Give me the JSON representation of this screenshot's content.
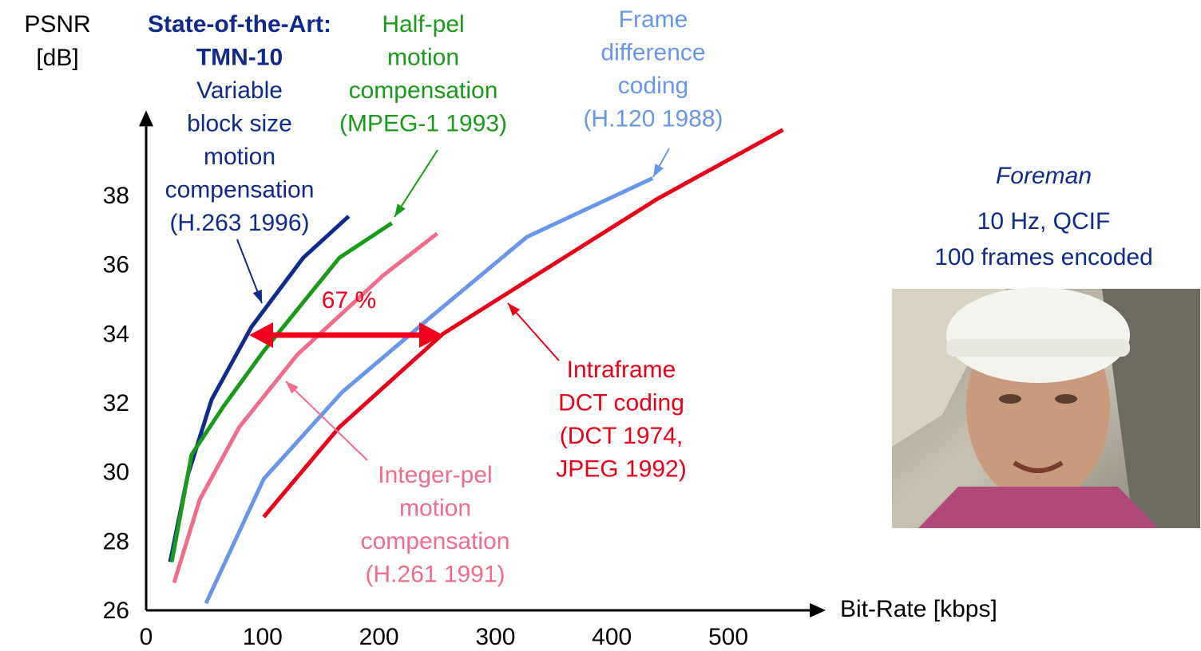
{
  "chart_data": {
    "type": "line",
    "y_label": [
      "PSNR",
      "[dB]"
    ],
    "x_label": "Bit-Rate [kbps]",
    "xlim": [
      0,
      570
    ],
    "ylim": [
      26,
      40
    ],
    "xticks": [
      0,
      100,
      200,
      300,
      400,
      500
    ],
    "yticks": [
      26,
      28,
      30,
      32,
      34,
      36,
      38
    ],
    "grid": false,
    "series": [
      {
        "color": "#102a8c",
        "x": [
          20.6,
          35.7,
          56.3,
          90.5,
          135,
          174
        ],
        "values": [
          27.4,
          29.9,
          32.1,
          34.2,
          36.2,
          37.4
        ]
      },
      {
        "color": "#1a9a1a",
        "x": [
          22,
          39,
          66.5,
          101,
          166,
          211
        ],
        "values": [
          27.4,
          30.5,
          31.9,
          33.5,
          36.2,
          37.2
        ]
      },
      {
        "color": "#f06c8a",
        "x": [
          24,
          46,
          80,
          130,
          204,
          250
        ],
        "values": [
          26.8,
          29.2,
          31.3,
          33.4,
          35.7,
          36.9
        ]
      },
      {
        "color": "#6a96e8",
        "x": [
          51.4,
          101,
          168,
          245,
          327,
          435
        ],
        "values": [
          26.2,
          29.8,
          32.3,
          34.5,
          36.8,
          38.5
        ]
      },
      {
        "color": "#e8001a",
        "x": [
          101,
          166,
          255,
          439,
          547
        ],
        "values": [
          28.7,
          31.3,
          34.0,
          37.9,
          39.9
        ]
      }
    ],
    "annotations": [
      {
        "color": "#102a8c",
        "heading": [
          "State-of-the-Art:",
          "TMN-10"
        ],
        "lines": [
          "Variable",
          "block size",
          "motion",
          "compensation",
          "(H.263 1996)"
        ]
      },
      {
        "color": "#1a9a1a",
        "lines": [
          "Half-pel",
          "motion",
          "compensation",
          "(MPEG-1 1993)"
        ]
      },
      {
        "color": "#6a96e8",
        "lines": [
          "Frame",
          "difference",
          "coding",
          "(H.120 1988)"
        ]
      },
      {
        "color": "#e8001a",
        "lines": [
          "Intraframe",
          "DCT coding",
          "(DCT 1974,",
          "JPEG 1992)"
        ]
      },
      {
        "color": "#f06c8a",
        "lines": [
          "Integer-pel",
          "motion",
          "compensation",
          "(H.261 1991)"
        ]
      }
    ],
    "gain_label": "67 %",
    "sequence": {
      "name": "Foreman",
      "lines": [
        "10 Hz, QCIF",
        "100 frames encoded"
      ]
    }
  }
}
